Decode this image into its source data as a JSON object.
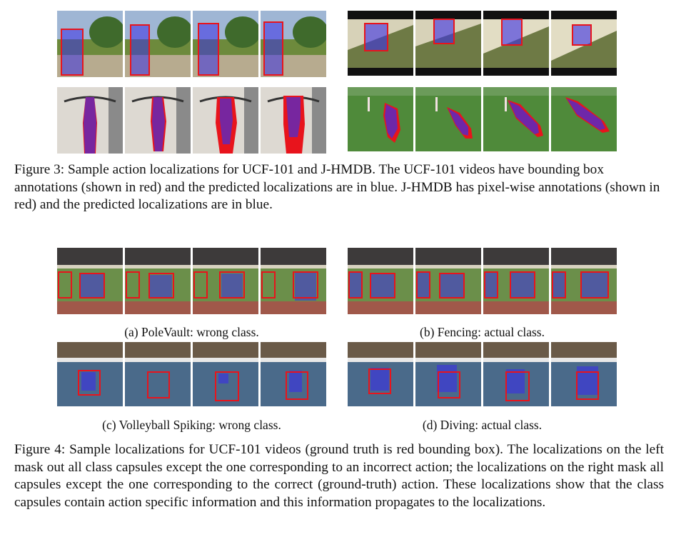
{
  "figure3": {
    "caption": "Figure 3: Sample action localizations for UCF-101 and J-HMDB. The UCF-101 videos have bounding box annotations (shown in red) and the predicted localizations are in blue. J-HMDB has pixel-wise annotations (shown in red) and the predicted localizations are in blue.",
    "strips": [
      {
        "scene": "basketball-court",
        "frames": 4
      },
      {
        "scene": "tilted-hillside",
        "frames": 4
      },
      {
        "scene": "pullup-wall",
        "frames": 4
      },
      {
        "scene": "soccer-field",
        "frames": 4
      }
    ]
  },
  "figure4": {
    "caption": "Figure 4: Sample localizations for UCF-101 videos (ground truth is red bounding box). The localizations on the left mask out all class capsules except the one corresponding to an incorrect action; the localizations on the right mask all capsules except the one corresponding to the correct (ground-truth) action. These localizations show that the class capsules contain action specific information and this information propagates to the localizations.",
    "subfigures": [
      {
        "label": "(a) PoleVault: wrong class.",
        "scene": "fencing-arena"
      },
      {
        "label": "(b) Fencing: actual class.",
        "scene": "fencing-arena"
      },
      {
        "label": "(c) Volleyball Spiking: wrong class.",
        "scene": "diving-pool"
      },
      {
        "label": "(d) Diving: actual class.",
        "scene": "diving-pool"
      }
    ]
  },
  "colors": {
    "annotation": "#e8141c",
    "prediction": "#3a2fe6"
  }
}
